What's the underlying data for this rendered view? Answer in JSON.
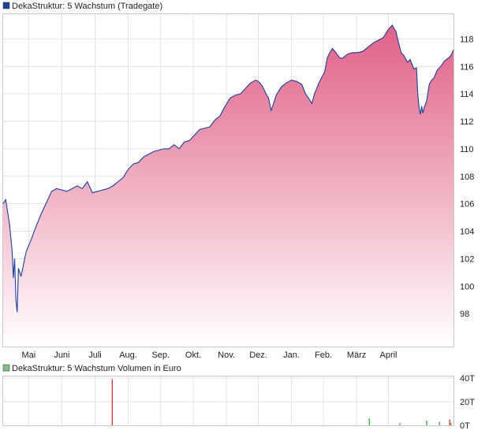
{
  "chart_data": [
    {
      "type": "area",
      "title": "DekaStruktur: 5 Wachstum (Tradegate)",
      "x_tick_labels": [
        "Mai",
        "Juni",
        "Juli",
        "Aug.",
        "Sep.",
        "Okt.",
        "Nov.",
        "Dez.",
        "Jan.",
        "Feb.",
        "März",
        "April"
      ],
      "y_ticks": [
        98,
        100,
        102,
        104,
        106,
        108,
        110,
        112,
        114,
        116,
        118
      ],
      "ylim": [
        95.6,
        119.8
      ],
      "xlim": [
        0,
        353
      ],
      "grid": true,
      "legend": "top-left",
      "colors": {
        "line": "#1e3f96",
        "fill_top": "#e06088",
        "fill_bottom": "#ffffff",
        "legend_box": "#1e3f96"
      },
      "series": [
        {
          "name": "DekaStruktur: 5 Wachstum (Tradegate)",
          "points": [
            [
              0,
              106.0
            ],
            [
              2,
              106.3
            ],
            [
              5,
              104.5
            ],
            [
              7,
              102.6
            ],
            [
              8,
              100.6
            ],
            [
              9,
              102.0
            ],
            [
              10,
              99.0
            ],
            [
              11,
              98.1
            ],
            [
              12,
              101.3
            ],
            [
              14,
              100.7
            ],
            [
              16,
              101.6
            ],
            [
              18,
              102.5
            ],
            [
              22,
              103.4
            ],
            [
              26,
              104.4
            ],
            [
              30,
              105.3
            ],
            [
              34,
              106.1
            ],
            [
              38,
              106.9
            ],
            [
              42,
              107.1
            ],
            [
              46,
              107.0
            ],
            [
              50,
              106.9
            ],
            [
              54,
              107.1
            ],
            [
              58,
              107.3
            ],
            [
              62,
              107.1
            ],
            [
              66,
              107.6
            ],
            [
              70,
              106.8
            ],
            [
              74,
              106.9
            ],
            [
              78,
              107.0
            ],
            [
              82,
              107.1
            ],
            [
              86,
              107.3
            ],
            [
              90,
              107.6
            ],
            [
              94,
              107.9
            ],
            [
              98,
              108.5
            ],
            [
              102,
              108.9
            ],
            [
              106,
              109.0
            ],
            [
              110,
              109.4
            ],
            [
              114,
              109.6
            ],
            [
              118,
              109.8
            ],
            [
              122,
              109.9
            ],
            [
              126,
              110.0
            ],
            [
              130,
              110.0
            ],
            [
              134,
              110.3
            ],
            [
              138,
              110.0
            ],
            [
              142,
              110.5
            ],
            [
              146,
              110.6
            ],
            [
              150,
              111.0
            ],
            [
              154,
              111.4
            ],
            [
              158,
              111.5
            ],
            [
              162,
              111.6
            ],
            [
              166,
              112.1
            ],
            [
              170,
              112.4
            ],
            [
              174,
              113.1
            ],
            [
              178,
              113.7
            ],
            [
              182,
              113.9
            ],
            [
              186,
              114.0
            ],
            [
              190,
              114.4
            ],
            [
              194,
              114.8
            ],
            [
              198,
              115.0
            ],
            [
              200,
              114.9
            ],
            [
              203,
              114.6
            ],
            [
              206,
              114.0
            ],
            [
              208,
              113.7
            ],
            [
              210,
              112.8
            ],
            [
              212,
              113.3
            ],
            [
              214,
              113.9
            ],
            [
              216,
              114.2
            ],
            [
              218,
              114.5
            ],
            [
              222,
              114.8
            ],
            [
              226,
              115.0
            ],
            [
              230,
              114.9
            ],
            [
              234,
              114.7
            ],
            [
              237,
              114.0
            ],
            [
              240,
              113.6
            ],
            [
              242,
              113.3
            ],
            [
              244,
              114.0
            ],
            [
              248,
              114.9
            ],
            [
              252,
              115.6
            ],
            [
              254,
              116.6
            ],
            [
              256,
              117.0
            ],
            [
              258,
              117.3
            ],
            [
              260,
              117.1
            ],
            [
              264,
              116.6
            ],
            [
              266,
              116.6
            ],
            [
              270,
              116.9
            ],
            [
              274,
              117.0
            ],
            [
              278,
              117.0
            ],
            [
              282,
              117.1
            ],
            [
              286,
              117.4
            ],
            [
              290,
              117.7
            ],
            [
              294,
              117.9
            ],
            [
              298,
              118.1
            ],
            [
              302,
              118.7
            ],
            [
              305,
              119.0
            ],
            [
              308,
              118.5
            ],
            [
              310,
              117.7
            ],
            [
              312,
              117.0
            ],
            [
              314,
              116.8
            ],
            [
              317,
              116.3
            ],
            [
              319,
              116.5
            ],
            [
              322,
              115.8
            ],
            [
              324,
              115.9
            ],
            [
              325,
              114.0
            ],
            [
              326,
              113.0
            ],
            [
              327,
              112.5
            ],
            [
              328,
              113.1
            ],
            [
              329,
              112.6
            ],
            [
              330,
              113.0
            ],
            [
              332,
              113.5
            ],
            [
              334,
              114.7
            ],
            [
              336,
              115.0
            ],
            [
              338,
              115.2
            ],
            [
              340,
              115.7
            ],
            [
              343,
              116.0
            ],
            [
              346,
              116.4
            ],
            [
              349,
              116.6
            ],
            [
              351,
              116.8
            ],
            [
              353,
              117.2
            ]
          ]
        }
      ]
    },
    {
      "type": "bar",
      "title": "DekaStruktur: 5 Wachstum Volumen in Euro",
      "y_tick_labels": [
        "40T",
        "20T",
        "0T"
      ],
      "y_ticks": [
        40,
        20,
        0
      ],
      "ylim": [
        0,
        40
      ],
      "xlim": [
        0,
        353
      ],
      "unit": "T",
      "grid": true,
      "legend": "top-left",
      "colors": {
        "up_bar": "#2fa82f",
        "down_bar": "#d42020",
        "legend_box": "#80c080"
      },
      "bars": [
        {
          "x": 85.5,
          "value": 39,
          "direction": "down"
        },
        {
          "x": 287,
          "value": 6,
          "direction": "up"
        },
        {
          "x": 311,
          "value": 2,
          "direction": "up"
        },
        {
          "x": 332,
          "value": 4,
          "direction": "up"
        },
        {
          "x": 342,
          "value": 3,
          "direction": "up"
        },
        {
          "x": 350,
          "value": 5,
          "direction": "down"
        },
        {
          "x": 351,
          "value": 2,
          "direction": "up"
        }
      ]
    }
  ]
}
